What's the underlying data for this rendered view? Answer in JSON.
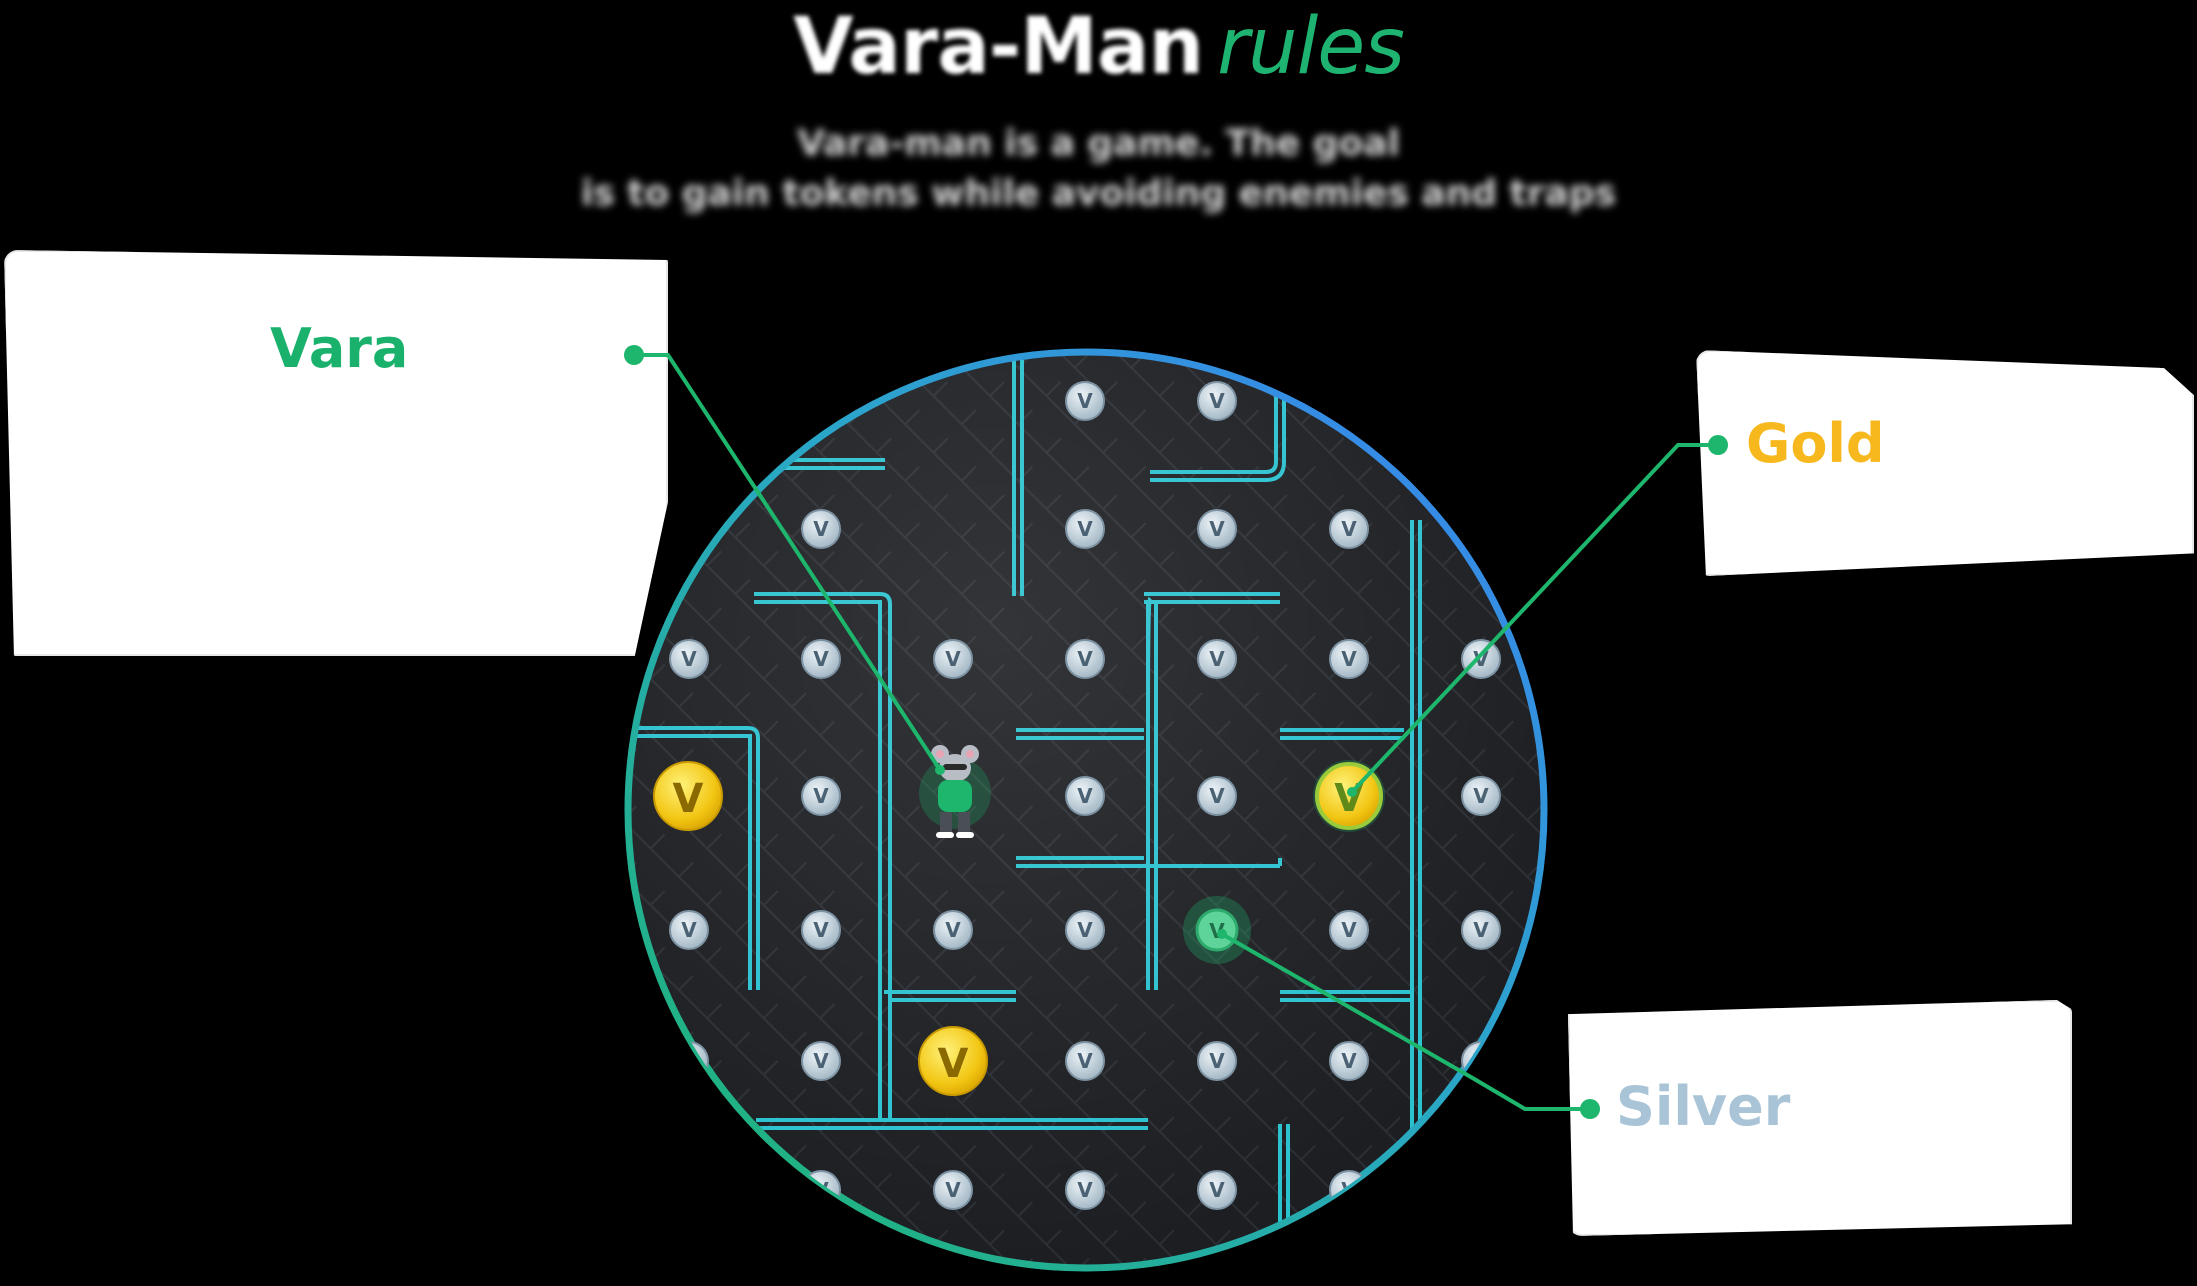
{
  "title": {
    "main": "Vara-Man",
    "accent": "rules"
  },
  "subtitle": {
    "line1": "Vara-man is a game. The goal",
    "line2": "is to gain tokens while avoiding enemies and traps"
  },
  "cards": {
    "vara": {
      "title": "Vara"
    },
    "gold": {
      "title": "Gold"
    },
    "silver": {
      "title": "Silver"
    }
  },
  "colors": {
    "background": "#000000",
    "accent_green": "#1fb371",
    "gold": "#f6b81c",
    "silver": "#a9c4d6",
    "maze_wall": "#2bc2d0",
    "ring_blue": "#3b7ff2",
    "ring_green": "#1db66c"
  },
  "icons": {
    "player": "mouse-character-icon",
    "coin": "vara-coin-icon",
    "gold": "gold-coin-icon",
    "connector": "connector-dot-icon"
  }
}
